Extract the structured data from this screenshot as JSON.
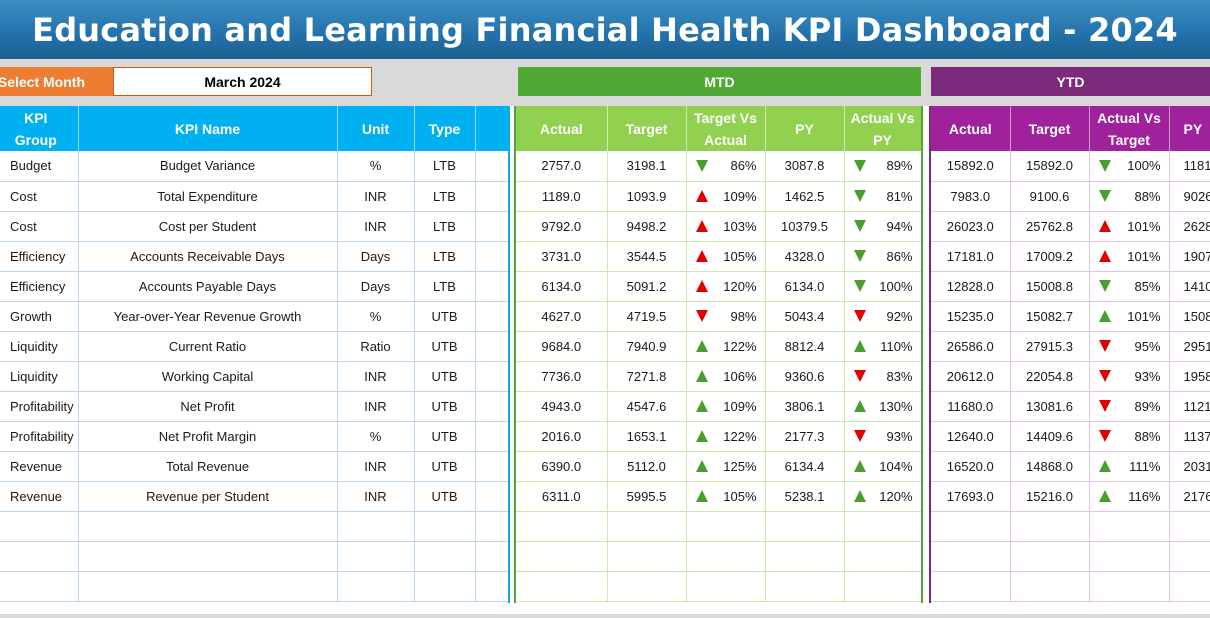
{
  "title": "Education and Learning Financial Health KPI Dashboard - 2024",
  "select_month": {
    "label": "Select Month",
    "value": "March 2024"
  },
  "mtd_label": "MTD",
  "ytd_label": "YTD",
  "left_headers": [
    "KPI Group",
    "KPI Name",
    "Unit",
    "Type"
  ],
  "mtd_headers": [
    "Actual",
    "Target",
    "Target Vs Actual",
    "PY",
    "Actual Vs PY"
  ],
  "ytd_headers": [
    "Actual",
    "Target",
    "Actual Vs Target",
    "PY"
  ],
  "colors": {
    "up_red": "#e00000",
    "up_green": "#4a9e2e",
    "down_red": "#e00000",
    "down_green": "#4a9e2e"
  },
  "rows": [
    {
      "group": "Budget",
      "name": "Budget Variance",
      "unit": "%",
      "type": "LTB",
      "mtd": {
        "actual": "2757.0",
        "target": "3198.1",
        "tva": "86%",
        "tva_icon": "down-green",
        "py": "3087.8",
        "avp": "89%",
        "avp_icon": "down-green"
      },
      "ytd": {
        "actual": "15892.0",
        "target": "15892.0",
        "avt": "100%",
        "avt_icon": "down-green",
        "py": "1181"
      }
    },
    {
      "group": "Cost",
      "name": "Total Expenditure",
      "unit": "INR",
      "type": "LTB",
      "mtd": {
        "actual": "1189.0",
        "target": "1093.9",
        "tva": "109%",
        "tva_icon": "up-red",
        "py": "1462.5",
        "avp": "81%",
        "avp_icon": "down-green"
      },
      "ytd": {
        "actual": "7983.0",
        "target": "9100.6",
        "avt": "88%",
        "avt_icon": "down-green",
        "py": "9026"
      }
    },
    {
      "group": "Cost",
      "name": "Cost per Student",
      "unit": "INR",
      "type": "LTB",
      "mtd": {
        "actual": "9792.0",
        "target": "9498.2",
        "tva": "103%",
        "tva_icon": "up-red",
        "py": "10379.5",
        "avp": "94%",
        "avp_icon": "down-green"
      },
      "ytd": {
        "actual": "26023.0",
        "target": "25762.8",
        "avt": "101%",
        "avt_icon": "up-red",
        "py": "2628"
      }
    },
    {
      "group": "Efficiency",
      "name": "Accounts Receivable Days",
      "unit": "Days",
      "type": "LTB",
      "mtd": {
        "actual": "3731.0",
        "target": "3544.5",
        "tva": "105%",
        "tva_icon": "up-red",
        "py": "4328.0",
        "avp": "86%",
        "avp_icon": "down-green"
      },
      "ytd": {
        "actual": "17181.0",
        "target": "17009.2",
        "avt": "101%",
        "avt_icon": "up-red",
        "py": "1907"
      }
    },
    {
      "group": "Efficiency",
      "name": "Accounts Payable Days",
      "unit": "Days",
      "type": "LTB",
      "mtd": {
        "actual": "6134.0",
        "target": "5091.2",
        "tva": "120%",
        "tva_icon": "up-red",
        "py": "6134.0",
        "avp": "100%",
        "avp_icon": "down-green"
      },
      "ytd": {
        "actual": "12828.0",
        "target": "15008.8",
        "avt": "85%",
        "avt_icon": "down-green",
        "py": "1410"
      }
    },
    {
      "group": "Growth",
      "name": "Year-over-Year Revenue Growth",
      "unit": "%",
      "type": "UTB",
      "mtd": {
        "actual": "4627.0",
        "target": "4719.5",
        "tva": "98%",
        "tva_icon": "down-red",
        "py": "5043.4",
        "avp": "92%",
        "avp_icon": "down-red"
      },
      "ytd": {
        "actual": "15235.0",
        "target": "15082.7",
        "avt": "101%",
        "avt_icon": "up-green",
        "py": "1508"
      }
    },
    {
      "group": "Liquidity",
      "name": "Current Ratio",
      "unit": "Ratio",
      "type": "UTB",
      "mtd": {
        "actual": "9684.0",
        "target": "7940.9",
        "tva": "122%",
        "tva_icon": "up-green",
        "py": "8812.4",
        "avp": "110%",
        "avp_icon": "up-green"
      },
      "ytd": {
        "actual": "26586.0",
        "target": "27915.3",
        "avt": "95%",
        "avt_icon": "down-red",
        "py": "2951"
      }
    },
    {
      "group": "Liquidity",
      "name": "Working Capital",
      "unit": "INR",
      "type": "UTB",
      "mtd": {
        "actual": "7736.0",
        "target": "7271.8",
        "tva": "106%",
        "tva_icon": "up-green",
        "py": "9360.6",
        "avp": "83%",
        "avp_icon": "down-red"
      },
      "ytd": {
        "actual": "20612.0",
        "target": "22054.8",
        "avt": "93%",
        "avt_icon": "down-red",
        "py": "1958"
      }
    },
    {
      "group": "Profitability",
      "name": "Net Profit",
      "unit": "INR",
      "type": "UTB",
      "mtd": {
        "actual": "4943.0",
        "target": "4547.6",
        "tva": "109%",
        "tva_icon": "up-green",
        "py": "3806.1",
        "avp": "130%",
        "avp_icon": "up-green"
      },
      "ytd": {
        "actual": "11680.0",
        "target": "13081.6",
        "avt": "89%",
        "avt_icon": "down-red",
        "py": "1121"
      }
    },
    {
      "group": "Profitability",
      "name": "Net Profit Margin",
      "unit": "%",
      "type": "UTB",
      "mtd": {
        "actual": "2016.0",
        "target": "1653.1",
        "tva": "122%",
        "tva_icon": "up-green",
        "py": "2177.3",
        "avp": "93%",
        "avp_icon": "down-red"
      },
      "ytd": {
        "actual": "12640.0",
        "target": "14409.6",
        "avt": "88%",
        "avt_icon": "down-red",
        "py": "1137"
      }
    },
    {
      "group": "Revenue",
      "name": "Total Revenue",
      "unit": "INR",
      "type": "UTB",
      "mtd": {
        "actual": "6390.0",
        "target": "5112.0",
        "tva": "125%",
        "tva_icon": "up-green",
        "py": "6134.4",
        "avp": "104%",
        "avp_icon": "up-green"
      },
      "ytd": {
        "actual": "16520.0",
        "target": "14868.0",
        "avt": "111%",
        "avt_icon": "up-green",
        "py": "2031"
      }
    },
    {
      "group": "Revenue",
      "name": "Revenue per Student",
      "unit": "INR",
      "type": "UTB",
      "mtd": {
        "actual": "6311.0",
        "target": "5995.5",
        "tva": "105%",
        "tva_icon": "up-green",
        "py": "5238.1",
        "avp": "120%",
        "avp_icon": "up-green"
      },
      "ytd": {
        "actual": "17693.0",
        "target": "15216.0",
        "avt": "116%",
        "avt_icon": "up-green",
        "py": "2176"
      }
    }
  ]
}
